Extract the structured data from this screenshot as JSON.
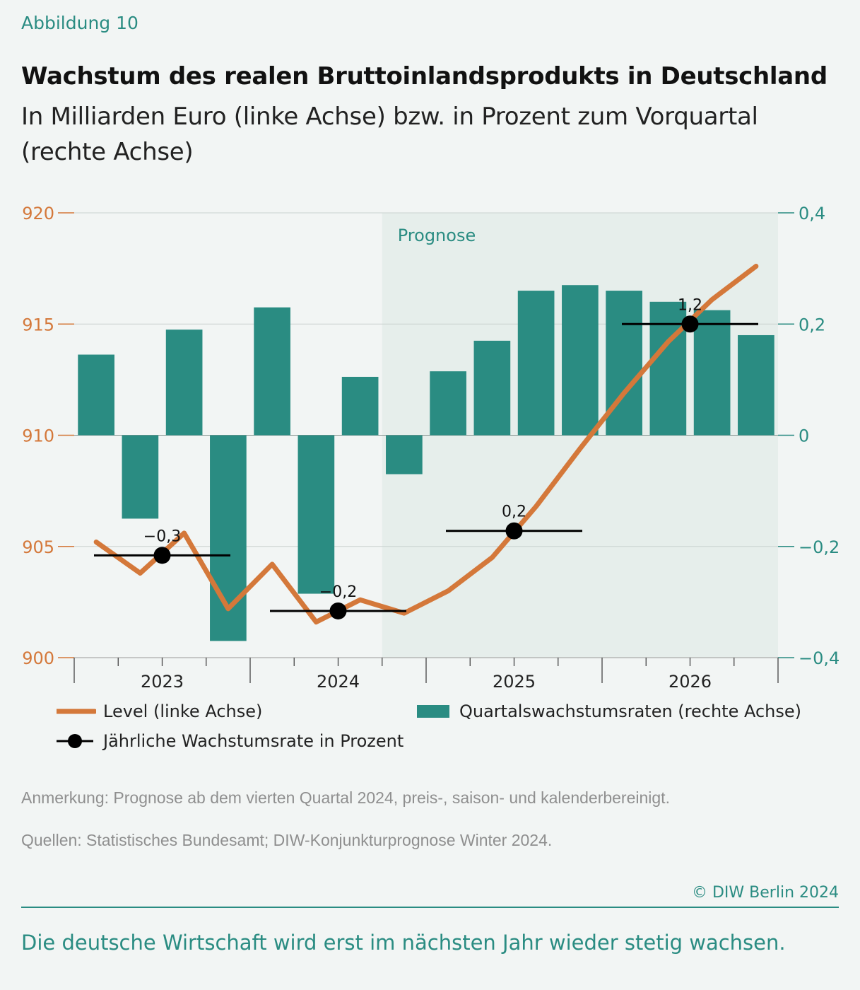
{
  "header": {
    "figure_label": "Abbildung 10",
    "title": "Wachstum des realen Bruttoinlandsprodukts in Deutschland",
    "subtitle": "In Milliarden Euro (linke Achse) bzw. in Prozent zum Vorquartal (rechte Achse)"
  },
  "colors": {
    "bars": "#2a8c82",
    "line": "#d4783a",
    "annual": "#000000",
    "forecast_bg": "#e6eeeb",
    "left_axis": "#d4783a",
    "right_axis": "#2a8c82"
  },
  "chart_data": {
    "type": "bar",
    "categories": [
      "Q1 2023",
      "Q2 2023",
      "Q3 2023",
      "Q4 2023",
      "Q1 2024",
      "Q2 2024",
      "Q3 2024",
      "Q4 2024",
      "Q1 2025",
      "Q2 2025",
      "Q3 2025",
      "Q4 2025",
      "Q1 2026",
      "Q2 2026",
      "Q3 2026",
      "Q4 2026"
    ],
    "forecast_label": "Prognose",
    "forecast_start": "Q4 2024",
    "x_tick_labels": [
      "2023",
      "2024",
      "2025",
      "2026"
    ],
    "left_axis": {
      "ticks": [
        "900",
        "905",
        "910",
        "915",
        "920"
      ],
      "ylim": [
        900,
        920
      ]
    },
    "right_axis": {
      "ticks": [
        "−0,4",
        "−0,2",
        "0",
        "0,2",
        "0,4"
      ],
      "ylim": [
        -0.4,
        0.4
      ]
    },
    "series": [
      {
        "name": "Quartalswachstumsraten (rechte Achse)",
        "type": "bar",
        "axis": "right",
        "values": [
          0.145,
          -0.15,
          0.19,
          -0.37,
          0.23,
          -0.285,
          0.105,
          -0.07,
          0.115,
          0.17,
          0.26,
          0.27,
          0.26,
          0.24,
          0.225,
          0.18
        ]
      },
      {
        "name": "Level (linke Achse)",
        "type": "line",
        "axis": "left",
        "x": [
          "Q1 2023",
          "Q2 2023",
          "Q3 2023",
          "Q4 2023",
          "Q1 2024",
          "Q2 2024",
          "Q3 2024",
          "Q4 2024",
          "Q1 2025",
          "Q2 2025",
          "Q3 2025",
          "Q4 2025",
          "Q1 2026",
          "Q2 2026",
          "Q3 2026",
          "Q4 2026"
        ],
        "values": [
          905.2,
          903.8,
          905.6,
          902.2,
          904.2,
          901.6,
          902.6,
          902.0,
          903.0,
          904.5,
          906.8,
          909.4,
          911.9,
          914.2,
          916.1,
          917.6
        ]
      },
      {
        "name": "Jährliche Wachstumsrate in Prozent",
        "type": "annual",
        "axis": "left",
        "years": [
          "2023",
          "2024",
          "2025",
          "2026"
        ],
        "labels": [
          "−0,3",
          "−0,2",
          "0,2",
          "1,2"
        ],
        "level": [
          904.6,
          902.1,
          905.7,
          915.0
        ]
      }
    ]
  },
  "legend": {
    "line": "Level (linke Achse)",
    "bars": "Quartalswachstumsraten (rechte Achse)",
    "annual": "Jährliche Wachstumsrate in Prozent"
  },
  "notes": {
    "remark": "Anmerkung: Prognose ab dem vierten Quartal 2024, preis-, saison- und kalenderbereinigt.",
    "sources": "Quellen: Statistisches Bundesamt; DIW-Konjunkturprognose Winter 2024."
  },
  "footer": {
    "credit": "© DIW Berlin 2024",
    "summary": "Die deutsche Wirtschaft wird erst im nächsten Jahr wieder stetig wachsen."
  }
}
